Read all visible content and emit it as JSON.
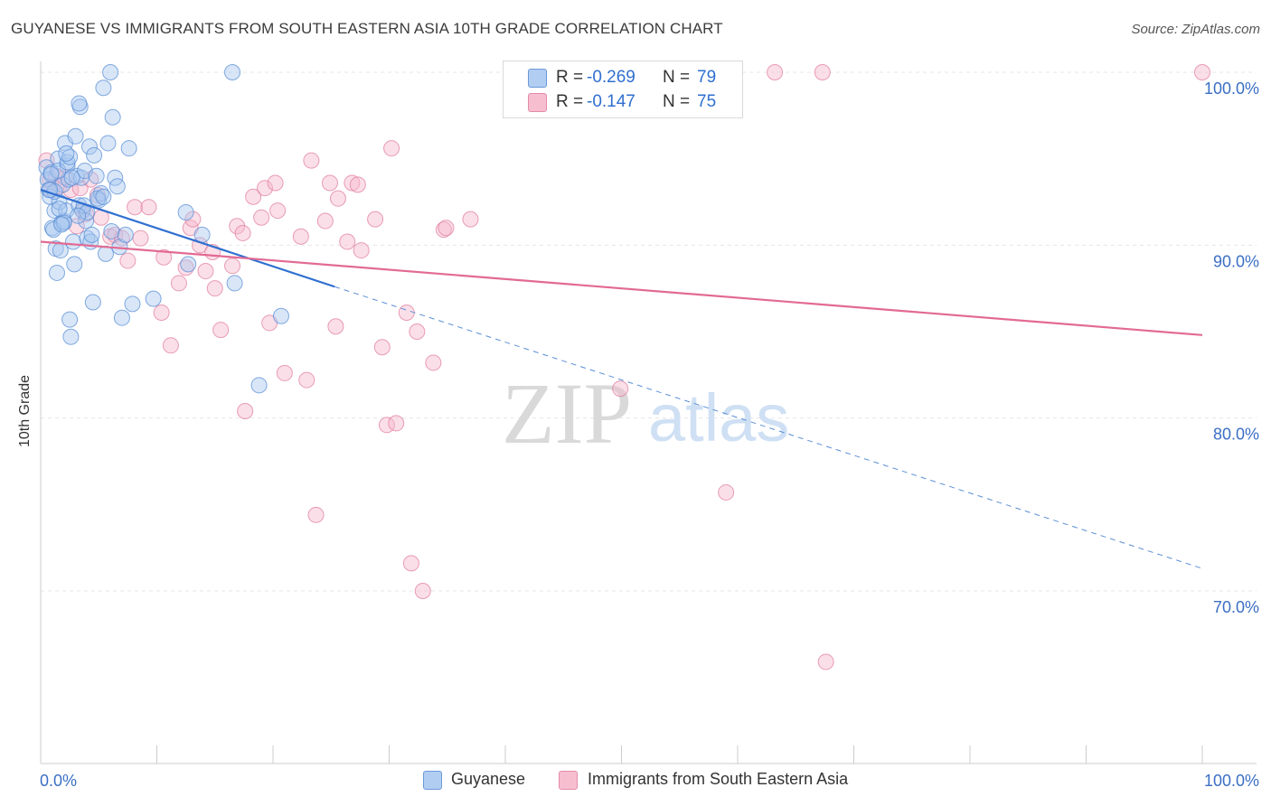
{
  "title": "GUYANESE VS IMMIGRANTS FROM SOUTH EASTERN ASIA 10TH GRADE CORRELATION CHART",
  "source": "Source: ZipAtlas.com",
  "watermark": {
    "zip": "ZIP",
    "atlas": "atlas"
  },
  "legend": {
    "r_label": "R =",
    "n_label": "N =",
    "series": [
      {
        "name": "Guyanese",
        "r": "-0.269",
        "n": "79",
        "fill": "#a9c8f0",
        "stroke": "#5b8fd6",
        "value_color": "#2f6fd0"
      },
      {
        "name": "Immigrants from South Eastern Asia",
        "r": "-0.147",
        "n": "75",
        "fill": "#f7b8cb",
        "stroke": "#e07fa0",
        "value_color": "#2f6fd0"
      }
    ]
  },
  "chart_data": {
    "type": "scatter",
    "title": "GUYANESE VS IMMIGRANTS FROM SOUTH EASTERN ASIA 10TH GRADE CORRELATION CHART",
    "xlabel": "",
    "ylabel": "10th Grade",
    "xlim": [
      0,
      100
    ],
    "ylim": [
      60,
      100
    ],
    "x_tick_labels": [
      "0.0%",
      "100.0%"
    ],
    "y_ticks": [
      70,
      80,
      90,
      100
    ],
    "y_tick_labels": [
      "70.0%",
      "80.0%",
      "90.0%",
      "100.0%"
    ],
    "grid": true,
    "series": [
      {
        "name": "Guyanese",
        "color": "#5b8fd6",
        "trend": {
          "x_start": 0,
          "y_start": 93.2,
          "x_solid_end": 25.3,
          "y_solid_end": 87.6,
          "x_end": 100,
          "y_end": 71.3
        },
        "points": [
          [
            0.5,
            94.5
          ],
          [
            0.6,
            93.8
          ],
          [
            0.7,
            93.2
          ],
          [
            0.8,
            92.8
          ],
          [
            0.9,
            94.2
          ],
          [
            1.0,
            91.0
          ],
          [
            1.2,
            92.0
          ],
          [
            1.3,
            89.8
          ],
          [
            1.4,
            88.4
          ],
          [
            1.5,
            95.0
          ],
          [
            1.6,
            92.5
          ],
          [
            1.7,
            89.7
          ],
          [
            1.8,
            91.3
          ],
          [
            1.9,
            93.5
          ],
          [
            2.0,
            91.4
          ],
          [
            2.1,
            95.9
          ],
          [
            2.2,
            92.0
          ],
          [
            2.3,
            94.6
          ],
          [
            2.4,
            93.8
          ],
          [
            2.5,
            85.7
          ],
          [
            2.6,
            84.7
          ],
          [
            2.8,
            90.2
          ],
          [
            2.9,
            88.9
          ],
          [
            3.0,
            96.3
          ],
          [
            3.1,
            94.0
          ],
          [
            3.3,
            92.3
          ],
          [
            3.4,
            98.0
          ],
          [
            3.5,
            93.9
          ],
          [
            3.6,
            92.0
          ],
          [
            3.8,
            94.3
          ],
          [
            3.9,
            91.4
          ],
          [
            4.0,
            90.4
          ],
          [
            4.2,
            95.7
          ],
          [
            4.3,
            90.2
          ],
          [
            4.5,
            86.7
          ],
          [
            4.6,
            95.2
          ],
          [
            4.8,
            94.0
          ],
          [
            5.0,
            92.6
          ],
          [
            5.2,
            93.0
          ],
          [
            5.4,
            99.1
          ],
          [
            5.6,
            89.5
          ],
          [
            5.8,
            95.9
          ],
          [
            6.0,
            100.0
          ],
          [
            6.2,
            97.4
          ],
          [
            6.4,
            93.9
          ],
          [
            6.6,
            93.4
          ],
          [
            6.8,
            89.9
          ],
          [
            7.0,
            85.8
          ],
          [
            7.3,
            90.6
          ],
          [
            7.6,
            95.6
          ],
          [
            7.9,
            86.6
          ],
          [
            9.7,
            86.9
          ],
          [
            12.5,
            91.9
          ],
          [
            12.7,
            88.9
          ],
          [
            13.9,
            90.6
          ],
          [
            16.5,
            100.0
          ],
          [
            16.7,
            87.8
          ],
          [
            18.8,
            81.9
          ],
          [
            20.7,
            85.9
          ],
          [
            1.1,
            90.9
          ],
          [
            1.2,
            93.1
          ],
          [
            1.5,
            94.3
          ],
          [
            1.6,
            92.1
          ],
          [
            2.0,
            91.3
          ],
          [
            2.7,
            93.9
          ],
          [
            3.3,
            98.2
          ],
          [
            4.9,
            92.7
          ],
          [
            5.4,
            92.8
          ],
          [
            0.8,
            93.2
          ],
          [
            2.3,
            94.8
          ],
          [
            2.5,
            95.1
          ],
          [
            3.7,
            92.3
          ],
          [
            4.0,
            91.9
          ],
          [
            0.9,
            94.1
          ],
          [
            1.8,
            91.2
          ],
          [
            6.1,
            90.8
          ],
          [
            2.2,
            95.3
          ],
          [
            3.2,
            91.7
          ],
          [
            4.4,
            90.6
          ]
        ]
      },
      {
        "name": "Immigrants from South Eastern Asia",
        "color": "#e07fa0",
        "trend": {
          "x_start": 0,
          "y_start": 90.2,
          "x_end": 100,
          "y_end": 84.8
        },
        "points": [
          [
            0.5,
            94.9
          ],
          [
            0.8,
            93.8
          ],
          [
            1.0,
            93.2
          ],
          [
            1.3,
            94.0
          ],
          [
            1.6,
            93.4
          ],
          [
            2.1,
            93.9
          ],
          [
            2.6,
            93.2
          ],
          [
            3.1,
            91.1
          ],
          [
            3.4,
            93.3
          ],
          [
            3.6,
            92.0
          ],
          [
            3.9,
            91.8
          ],
          [
            4.3,
            93.8
          ],
          [
            5.2,
            91.6
          ],
          [
            6.0,
            90.5
          ],
          [
            6.4,
            90.6
          ],
          [
            7.0,
            90.4
          ],
          [
            7.5,
            89.1
          ],
          [
            8.1,
            92.2
          ],
          [
            8.6,
            90.4
          ],
          [
            9.3,
            92.2
          ],
          [
            10.4,
            86.1
          ],
          [
            10.6,
            89.3
          ],
          [
            11.2,
            84.2
          ],
          [
            11.9,
            87.8
          ],
          [
            12.5,
            88.7
          ],
          [
            12.9,
            91.0
          ],
          [
            13.1,
            91.5
          ],
          [
            13.7,
            90.0
          ],
          [
            14.2,
            88.5
          ],
          [
            14.8,
            89.6
          ],
          [
            15.0,
            87.5
          ],
          [
            15.5,
            85.1
          ],
          [
            16.5,
            88.8
          ],
          [
            16.9,
            91.1
          ],
          [
            17.4,
            90.7
          ],
          [
            17.6,
            80.4
          ],
          [
            18.3,
            92.8
          ],
          [
            19.0,
            91.6
          ],
          [
            19.3,
            93.3
          ],
          [
            19.7,
            85.5
          ],
          [
            20.2,
            93.6
          ],
          [
            20.4,
            92.0
          ],
          [
            21.0,
            82.6
          ],
          [
            22.4,
            90.5
          ],
          [
            22.9,
            82.2
          ],
          [
            23.3,
            94.9
          ],
          [
            23.7,
            74.4
          ],
          [
            24.5,
            91.4
          ],
          [
            24.9,
            93.6
          ],
          [
            25.4,
            85.3
          ],
          [
            25.6,
            92.7
          ],
          [
            26.4,
            90.2
          ],
          [
            26.8,
            93.6
          ],
          [
            27.3,
            93.5
          ],
          [
            27.6,
            89.7
          ],
          [
            28.8,
            91.5
          ],
          [
            29.4,
            84.1
          ],
          [
            29.8,
            79.6
          ],
          [
            30.2,
            95.6
          ],
          [
            30.6,
            79.7
          ],
          [
            31.5,
            86.1
          ],
          [
            31.9,
            71.6
          ],
          [
            32.4,
            85.0
          ],
          [
            32.9,
            70.0
          ],
          [
            33.8,
            83.2
          ],
          [
            34.7,
            90.9
          ],
          [
            34.9,
            91.0
          ],
          [
            37.0,
            91.5
          ],
          [
            49.9,
            81.7
          ],
          [
            59.0,
            75.7
          ],
          [
            63.2,
            100.0
          ],
          [
            67.3,
            100.0
          ],
          [
            67.6,
            65.9
          ],
          [
            100.0,
            100.0
          ],
          [
            4.9,
            92.9
          ]
        ]
      }
    ]
  }
}
